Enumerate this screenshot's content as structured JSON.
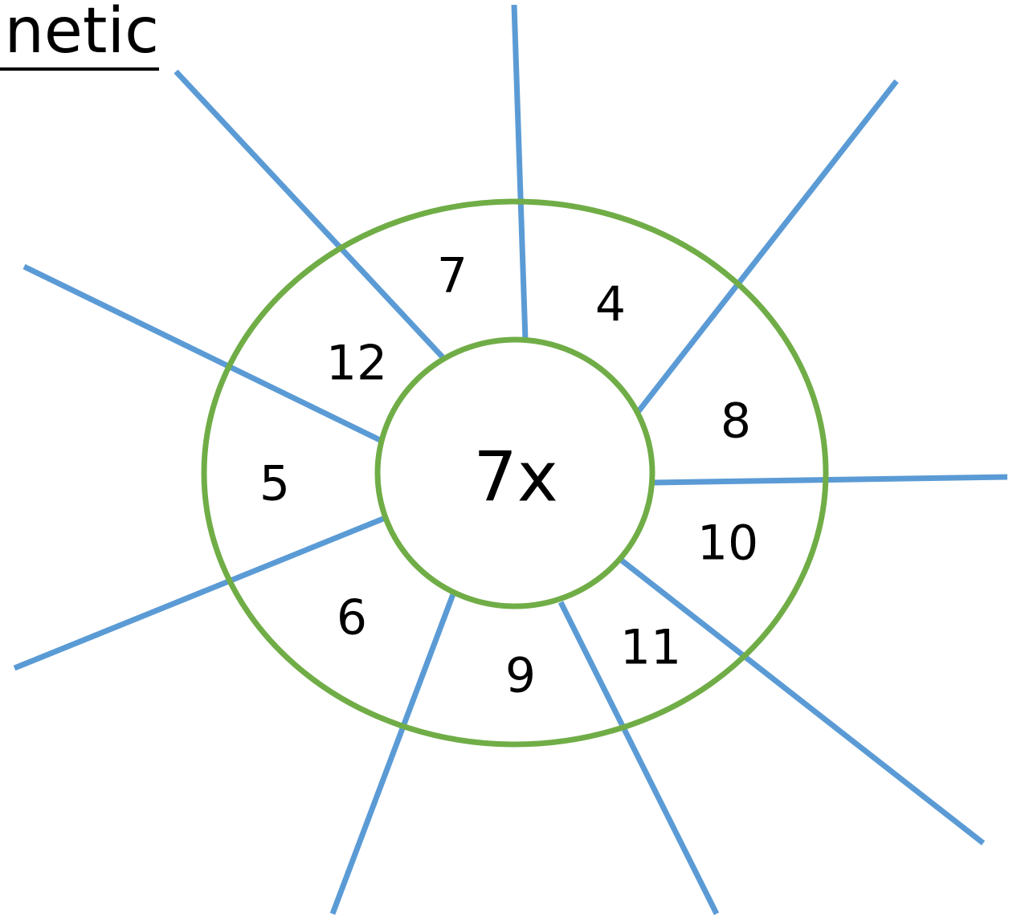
{
  "title": "netic",
  "center_label": "7x",
  "numbers": [
    "7",
    "4",
    "8",
    "10",
    "11",
    "9",
    "6",
    "5",
    "12"
  ],
  "colors": {
    "spokes": "#5b9bd5",
    "rings": "#70ad47",
    "text": "#000000"
  }
}
